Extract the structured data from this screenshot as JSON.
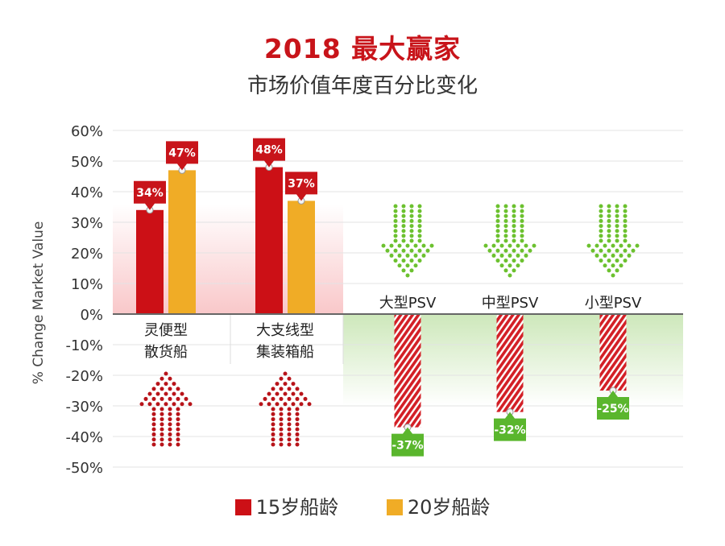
{
  "title": "2018 最大赢家",
  "subtitle": "市场价值年度百分比变化",
  "chart_data": {
    "type": "bar",
    "ylabel": "% Change Market Value",
    "ylim": [
      -50,
      60
    ],
    "yticks": [
      "60%",
      "50%",
      "40%",
      "30%",
      "20%",
      "10%",
      "0%",
      "-10%",
      "-20%",
      "-30%",
      "-40%",
      "-50%"
    ],
    "ytick_values": [
      60,
      50,
      40,
      30,
      20,
      10,
      0,
      -10,
      -20,
      -30,
      -40,
      -50
    ],
    "grid": true,
    "legend_position": "bottom",
    "groups": [
      {
        "label_line1": "灵便型",
        "label_line2": "散货船",
        "values": [
          34,
          47
        ],
        "labels": [
          "34%",
          "47%"
        ]
      },
      {
        "label_line1": "大支线型",
        "label_line2": "集装箱船",
        "values": [
          48,
          37
        ],
        "labels": [
          "48%",
          "37%"
        ]
      },
      {
        "label_line1": "大型PSV",
        "label_line2": "",
        "values": [
          -37
        ],
        "labels": [
          "-37%"
        ]
      },
      {
        "label_line1": "中型PSV",
        "label_line2": "",
        "values": [
          -32
        ],
        "labels": [
          "-32%"
        ]
      },
      {
        "label_line1": "小型PSV",
        "label_line2": "",
        "values": [
          -25
        ],
        "labels": [
          "-25%"
        ]
      }
    ],
    "series": [
      {
        "name": "15岁船龄",
        "color": "#cc1016"
      },
      {
        "name": "20岁船龄",
        "color": "#f0ac26"
      }
    ],
    "colors": {
      "up_callout": "#c8141a",
      "down_callout": "#5ab62d",
      "up_arrow": "#b8141a",
      "down_arrow": "#6cc12f"
    }
  }
}
